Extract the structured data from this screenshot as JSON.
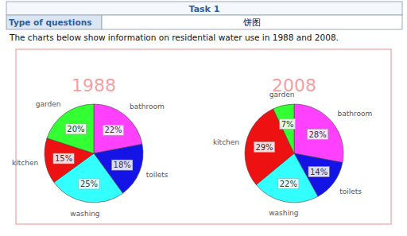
{
  "header": {
    "title": "Task 1",
    "rows": [
      [
        "Type of questions",
        "饼图"
      ]
    ]
  },
  "description": "The charts below show information on residential water use in 1988 and 2008.",
  "chart_data": [
    {
      "type": "pie",
      "title": "1988",
      "categories": [
        "bathroom",
        "toilets",
        "washing",
        "kitchen",
        "garden"
      ],
      "values": [
        22,
        18,
        25,
        15,
        20
      ],
      "value_labels": [
        "22%",
        "18%",
        "25%",
        "15%",
        "20%"
      ],
      "colors": [
        "#ff40ff",
        "#1414e6",
        "#33ffff",
        "#ee1111",
        "#33ff33"
      ],
      "data_labels": true
    },
    {
      "type": "pie",
      "title": "2008",
      "categories": [
        "bathroom",
        "toilets",
        "washing",
        "kitchen",
        "garden"
      ],
      "values": [
        28,
        14,
        22,
        29,
        7
      ],
      "value_labels": [
        "28%",
        "14%",
        "22%",
        "29%",
        "7%"
      ],
      "colors": [
        "#ff40ff",
        "#1414e6",
        "#33ffff",
        "#ee1111",
        "#33ff33"
      ],
      "data_labels": true
    }
  ]
}
